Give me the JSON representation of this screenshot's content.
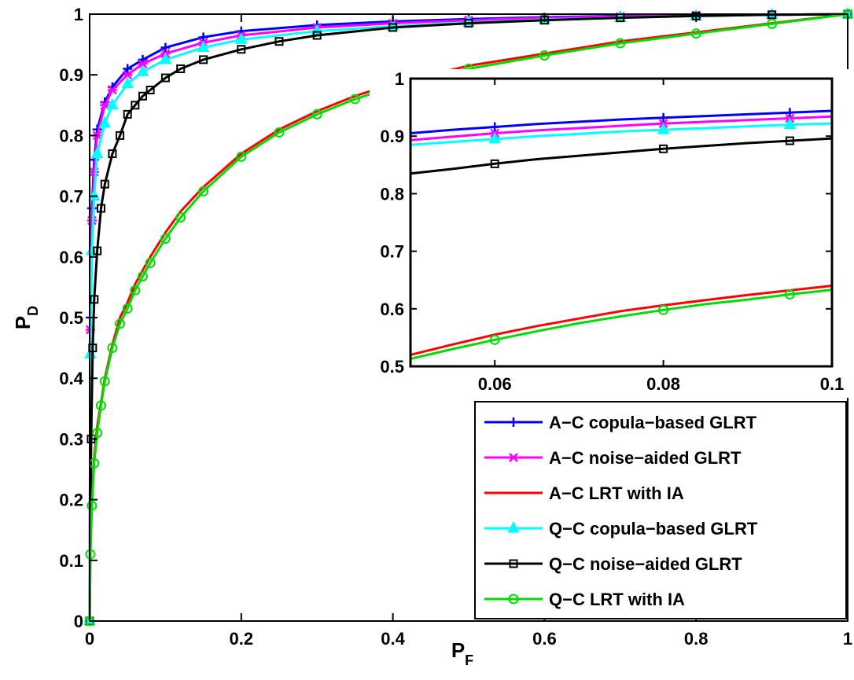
{
  "chart_data": [
    {
      "type": "line",
      "role": "main",
      "xlabel": "P",
      "xlabel_sub": "F",
      "ylabel": "P",
      "ylabel_sub": "D",
      "xlim": [
        0,
        1
      ],
      "ylim": [
        0,
        1
      ],
      "xticks": [
        "0",
        "0.2",
        "0.4",
        "0.6",
        "0.8",
        "1"
      ],
      "yticks": [
        "0",
        "0.1",
        "0.2",
        "0.3",
        "0.4",
        "0.5",
        "0.6",
        "0.7",
        "0.8",
        "0.9",
        "1"
      ],
      "grid": false,
      "legend_position": "bottom-right",
      "series": [
        {
          "name": "A−C copula−based GLRT",
          "color": "#0000ff",
          "marker": "plus",
          "x": [
            0,
            0.001,
            0.003,
            0.006,
            0.01,
            0.02,
            0.03,
            0.05,
            0.07,
            0.1,
            0.15,
            0.2,
            0.3,
            0.4,
            0.5,
            0.6,
            0.7,
            0.8,
            0.9,
            1.0
          ],
          "y": [
            0,
            0.5,
            0.68,
            0.76,
            0.81,
            0.855,
            0.88,
            0.91,
            0.925,
            0.945,
            0.962,
            0.972,
            0.982,
            0.988,
            0.992,
            0.995,
            0.997,
            0.998,
            0.999,
            1.0
          ]
        },
        {
          "name": "A−C noise−aided GLRT",
          "color": "#ff00ff",
          "marker": "star",
          "x": [
            0,
            0.001,
            0.003,
            0.006,
            0.01,
            0.02,
            0.03,
            0.05,
            0.07,
            0.1,
            0.15,
            0.2,
            0.3,
            0.4,
            0.5,
            0.6,
            0.7,
            0.8,
            0.9,
            1.0
          ],
          "y": [
            0,
            0.48,
            0.66,
            0.74,
            0.8,
            0.85,
            0.875,
            0.9,
            0.918,
            0.935,
            0.953,
            0.965,
            0.978,
            0.985,
            0.99,
            0.994,
            0.996,
            0.998,
            0.999,
            1.0
          ]
        },
        {
          "name": "A−C LRT with IA",
          "color": "#ff0000",
          "marker": "none",
          "x": [
            0,
            0.001,
            0.003,
            0.006,
            0.01,
            0.015,
            0.02,
            0.03,
            0.04,
            0.05,
            0.06,
            0.07,
            0.08,
            0.1,
            0.12,
            0.15,
            0.2,
            0.25,
            0.3,
            0.35,
            0.4,
            0.45,
            0.5,
            0.6,
            0.7,
            0.8,
            0.9,
            1.0
          ],
          "y": [
            0,
            0.12,
            0.2,
            0.27,
            0.32,
            0.36,
            0.4,
            0.455,
            0.5,
            0.525,
            0.555,
            0.578,
            0.6,
            0.64,
            0.675,
            0.715,
            0.77,
            0.81,
            0.84,
            0.865,
            0.885,
            0.9,
            0.915,
            0.935,
            0.955,
            0.97,
            0.985,
            1.0
          ]
        },
        {
          "name": "Q−C copula−based GLRT",
          "color": "#00ffff",
          "marker": "triangle",
          "x": [
            0,
            0.001,
            0.003,
            0.006,
            0.01,
            0.02,
            0.03,
            0.05,
            0.07,
            0.1,
            0.15,
            0.2,
            0.3,
            0.4,
            0.5,
            0.6,
            0.7,
            0.8,
            0.9,
            1.0
          ],
          "y": [
            0,
            0.44,
            0.61,
            0.7,
            0.77,
            0.82,
            0.85,
            0.885,
            0.905,
            0.925,
            0.945,
            0.958,
            0.972,
            0.98,
            0.986,
            0.991,
            0.994,
            0.997,
            0.999,
            1.0
          ]
        },
        {
          "name": "Q−C noise−aided GLRT",
          "color": "#000000",
          "marker": "square",
          "x": [
            0,
            0.002,
            0.004,
            0.006,
            0.01,
            0.015,
            0.02,
            0.03,
            0.04,
            0.05,
            0.06,
            0.07,
            0.08,
            0.1,
            0.12,
            0.15,
            0.2,
            0.25,
            0.3,
            0.4,
            0.5,
            0.6,
            0.7,
            0.8,
            0.9,
            1.0
          ],
          "y": [
            0,
            0.3,
            0.45,
            0.53,
            0.61,
            0.68,
            0.72,
            0.77,
            0.8,
            0.835,
            0.85,
            0.865,
            0.875,
            0.895,
            0.91,
            0.925,
            0.942,
            0.955,
            0.965,
            0.978,
            0.985,
            0.99,
            0.994,
            0.997,
            0.999,
            1.0
          ]
        },
        {
          "name": "Q−C LRT with IA",
          "color": "#00dd00",
          "marker": "circle",
          "x": [
            0,
            0.001,
            0.003,
            0.006,
            0.01,
            0.015,
            0.02,
            0.03,
            0.04,
            0.05,
            0.06,
            0.07,
            0.08,
            0.1,
            0.12,
            0.15,
            0.2,
            0.25,
            0.3,
            0.35,
            0.4,
            0.45,
            0.5,
            0.6,
            0.7,
            0.8,
            0.9,
            1.0
          ],
          "y": [
            0,
            0.11,
            0.19,
            0.26,
            0.31,
            0.355,
            0.395,
            0.45,
            0.49,
            0.515,
            0.545,
            0.568,
            0.59,
            0.63,
            0.665,
            0.708,
            0.765,
            0.805,
            0.835,
            0.86,
            0.88,
            0.897,
            0.91,
            0.932,
            0.952,
            0.968,
            0.984,
            1.0
          ]
        }
      ]
    },
    {
      "type": "line",
      "role": "inset",
      "xlim": [
        0.05,
        0.1
      ],
      "ylim": [
        0.5,
        1
      ],
      "xticks": [
        "0.06",
        "0.08",
        "0.1"
      ],
      "yticks": [
        "0.5",
        "0.6",
        "0.7",
        "0.8",
        "0.9",
        "1"
      ],
      "series": [
        {
          "name": "A−C copula−based GLRT",
          "color": "#0000ff",
          "marker": "plus",
          "x": [
            0.05,
            0.055,
            0.06,
            0.065,
            0.07,
            0.075,
            0.08,
            0.085,
            0.09,
            0.095,
            0.1
          ],
          "y": [
            0.905,
            0.911,
            0.916,
            0.921,
            0.925,
            0.929,
            0.932,
            0.935,
            0.938,
            0.941,
            0.944
          ]
        },
        {
          "name": "A−C noise−aided GLRT",
          "color": "#ff00ff",
          "marker": "star",
          "x": [
            0.05,
            0.055,
            0.06,
            0.065,
            0.07,
            0.075,
            0.08,
            0.085,
            0.09,
            0.095,
            0.1
          ],
          "y": [
            0.893,
            0.899,
            0.905,
            0.91,
            0.914,
            0.918,
            0.922,
            0.925,
            0.928,
            0.931,
            0.934
          ]
        },
        {
          "name": "A−C LRT with IA",
          "color": "#ff0000",
          "marker": "none",
          "x": [
            0.05,
            0.055,
            0.06,
            0.065,
            0.07,
            0.075,
            0.08,
            0.085,
            0.09,
            0.095,
            0.1
          ],
          "y": [
            0.52,
            0.538,
            0.555,
            0.57,
            0.583,
            0.596,
            0.606,
            0.615,
            0.624,
            0.632,
            0.64
          ]
        },
        {
          "name": "Q−C copula−based GLRT",
          "color": "#00ffff",
          "marker": "triangle",
          "x": [
            0.05,
            0.055,
            0.06,
            0.065,
            0.07,
            0.075,
            0.08,
            0.085,
            0.09,
            0.095,
            0.1
          ],
          "y": [
            0.885,
            0.89,
            0.895,
            0.9,
            0.904,
            0.908,
            0.911,
            0.914,
            0.917,
            0.92,
            0.922
          ]
        },
        {
          "name": "Q−C noise−aided GLRT",
          "color": "#000000",
          "marker": "square",
          "x": [
            0.05,
            0.055,
            0.06,
            0.065,
            0.07,
            0.075,
            0.08,
            0.085,
            0.09,
            0.095,
            0.1
          ],
          "y": [
            0.835,
            0.843,
            0.852,
            0.86,
            0.866,
            0.872,
            0.878,
            0.883,
            0.888,
            0.892,
            0.896
          ]
        },
        {
          "name": "Q−C LRT with IA",
          "color": "#00dd00",
          "marker": "circle",
          "x": [
            0.05,
            0.055,
            0.06,
            0.065,
            0.07,
            0.075,
            0.08,
            0.085,
            0.09,
            0.095,
            0.1
          ],
          "y": [
            0.513,
            0.53,
            0.546,
            0.561,
            0.575,
            0.587,
            0.598,
            0.608,
            0.616,
            0.625,
            0.633
          ]
        }
      ]
    }
  ]
}
